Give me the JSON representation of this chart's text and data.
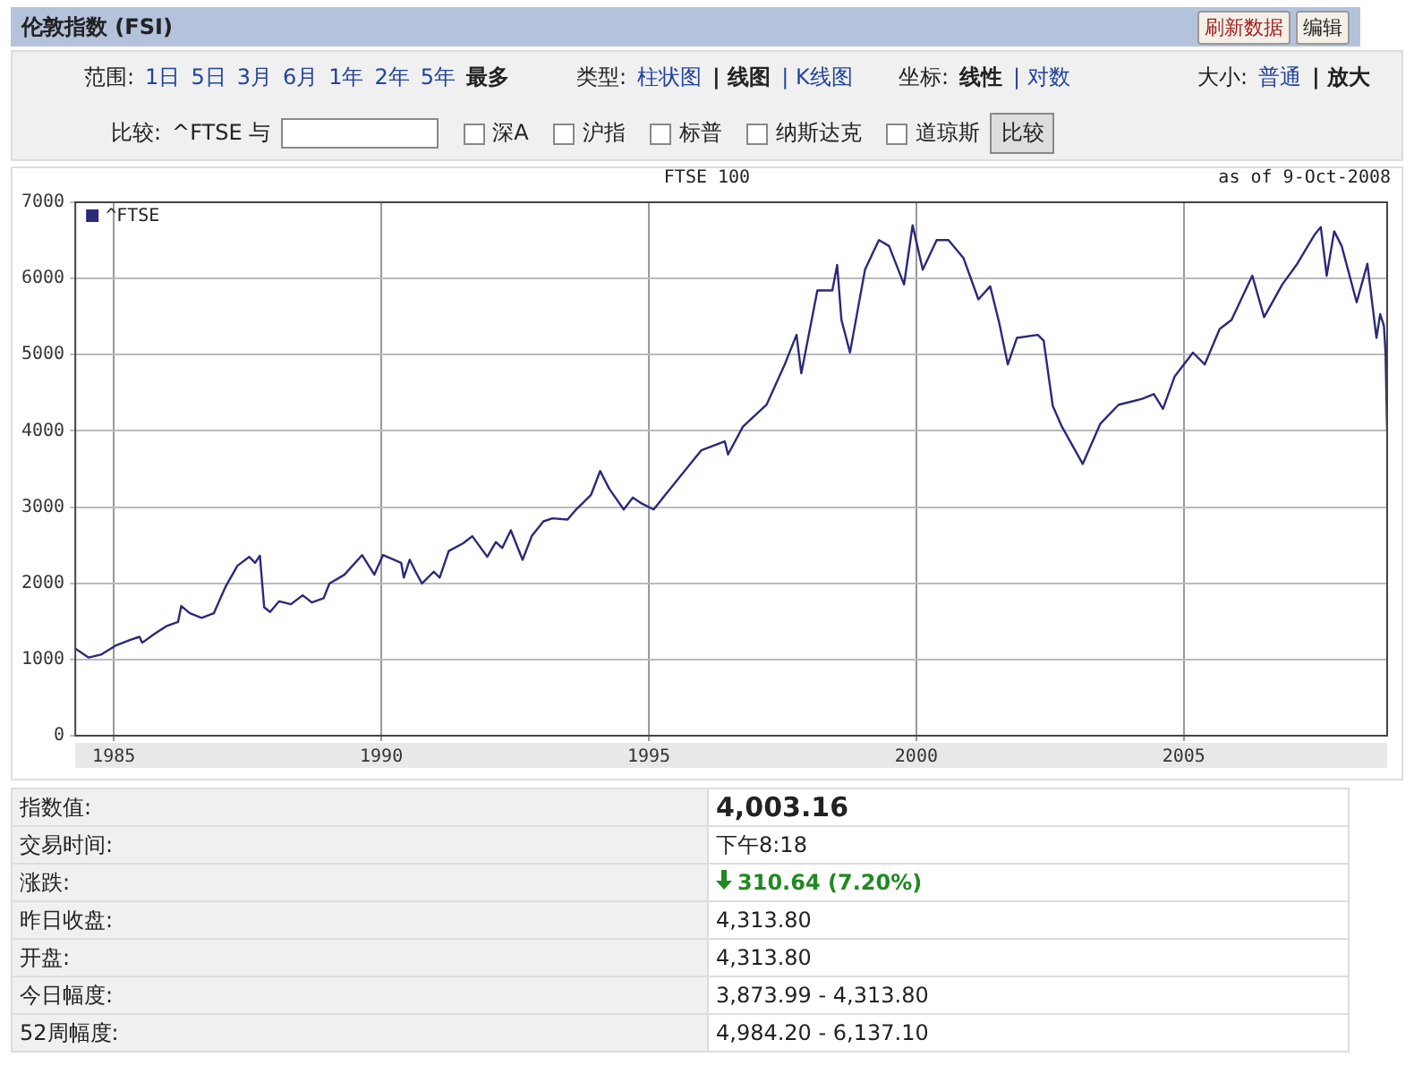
{
  "chart_data": {
    "type": "line",
    "title": "FTSE 100",
    "subtitle": "as of  9-Oct-2008",
    "x": [
      1984.28,
      1984.53,
      1984.76,
      1985.03,
      1985.31,
      1985.48,
      1985.53,
      1985.76,
      1985.98,
      1986.2,
      1986.26,
      1986.42,
      1986.64,
      1986.87,
      1987.09,
      1987.31,
      1987.53,
      1987.64,
      1987.73,
      1987.81,
      1987.92,
      1988.09,
      1988.31,
      1988.53,
      1988.7,
      1988.92,
      1989.03,
      1989.31,
      1989.64,
      1989.87,
      1990.03,
      1990.37,
      1990.42,
      1990.53,
      1990.64,
      1990.76,
      1990.98,
      1991.09,
      1991.26,
      1991.53,
      1991.7,
      1991.98,
      1992.14,
      1992.26,
      1992.42,
      1992.64,
      1992.81,
      1993.03,
      1993.2,
      1993.48,
      1993.64,
      1993.92,
      1994.09,
      1994.26,
      1994.53,
      1994.7,
      1994.87,
      1995.09,
      1995.31,
      1995.98,
      1996.42,
      1996.48,
      1996.76,
      1997.2,
      1997.54,
      1997.76,
      1997.85,
      1998.15,
      1998.43,
      1998.52,
      1998.6,
      1998.76,
      1999.04,
      1999.3,
      1999.49,
      1999.77,
      1999.93,
      2000.12,
      2000.38,
      2000.6,
      2000.88,
      2001.16,
      2001.38,
      2001.55,
      2001.71,
      2001.88,
      2002.27,
      2002.38,
      2002.55,
      2002.72,
      2003.11,
      2003.44,
      2003.78,
      2004.22,
      2004.44,
      2004.61,
      2004.83,
      2005.17,
      2005.39,
      2005.67,
      2005.89,
      2006.28,
      2006.5,
      2006.84,
      2007.12,
      2007.45,
      2007.56,
      2007.67,
      2007.81,
      2007.95,
      2008.23,
      2008.43,
      2008.6,
      2008.67,
      2008.74,
      2008.77,
      2008.8
    ],
    "series": [
      {
        "name": "^FTSE",
        "color": "#2a2a7a",
        "values": [
          1142,
          1026,
          1064,
          1181,
          1259,
          1298,
          1220,
          1336,
          1437,
          1492,
          1702,
          1608,
          1546,
          1608,
          1958,
          2230,
          2347,
          2269,
          2362,
          1686,
          1624,
          1764,
          1725,
          1842,
          1748,
          1803,
          1997,
          2113,
          2370,
          2113,
          2370,
          2269,
          2075,
          2308,
          2152,
          1997,
          2152,
          2075,
          2424,
          2525,
          2618,
          2347,
          2541,
          2463,
          2696,
          2308,
          2618,
          2813,
          2852,
          2836,
          2968,
          3162,
          3473,
          3240,
          2968,
          3123,
          3046,
          2968,
          3162,
          3745,
          3862,
          3691,
          4056,
          4343,
          4872,
          5260,
          4755,
          5843,
          5843,
          6177,
          5455,
          5028,
          6115,
          6503,
          6426,
          5921,
          6698,
          6115,
          6503,
          6503,
          6270,
          5726,
          5897,
          5415,
          4872,
          5221,
          5260,
          5183,
          4328,
          4056,
          3566,
          4095,
          4343,
          4421,
          4483,
          4289,
          4716,
          5027,
          4872,
          5338,
          5455,
          6037,
          5493,
          5921,
          6193,
          6581,
          6674,
          6037,
          6620,
          6426,
          5688,
          6193,
          5221,
          5532,
          5377,
          5027,
          4003
        ]
      }
    ],
    "xlim": [
      1984.28,
      2008.8
    ],
    "xticks": [
      1985,
      1990,
      1995,
      2000,
      2005
    ],
    "ylim": [
      0,
      7000
    ],
    "yticks": [
      0,
      1000,
      2000,
      3000,
      4000,
      5000,
      6000,
      7000
    ],
    "grid": true,
    "legend": "top left",
    "marker": "none",
    "line_style": "solid",
    "annotations": [
      "伦敦指数 (FSI)",
      "刷新数据",
      "编辑",
      "范围:",
      "1日",
      "5日",
      "3月",
      "6月",
      "1年",
      "2年",
      "5年",
      "最多",
      "类型:",
      "柱状图",
      "| 线图",
      "| K线图",
      "坐标:",
      "线性",
      "| 对数",
      "大小:",
      "普通",
      "| 放大",
      "比较:",
      "^FTSE 与",
      "深A",
      "沪指",
      "标普",
      "纳斯达克",
      "道琼斯",
      "比较",
      "指数值:",
      "4,003.16",
      "交易时间:",
      "下午8:18",
      "涨跌:",
      "310.64 (7.20%)",
      "昨日收盘:",
      "4,313.80",
      "开盘:",
      "4,313.80",
      "今日幅度:",
      "3,873.99 - 4,313.80",
      "52周幅度:",
      "4,984.20 - 6,137.10"
    ]
  }
}
